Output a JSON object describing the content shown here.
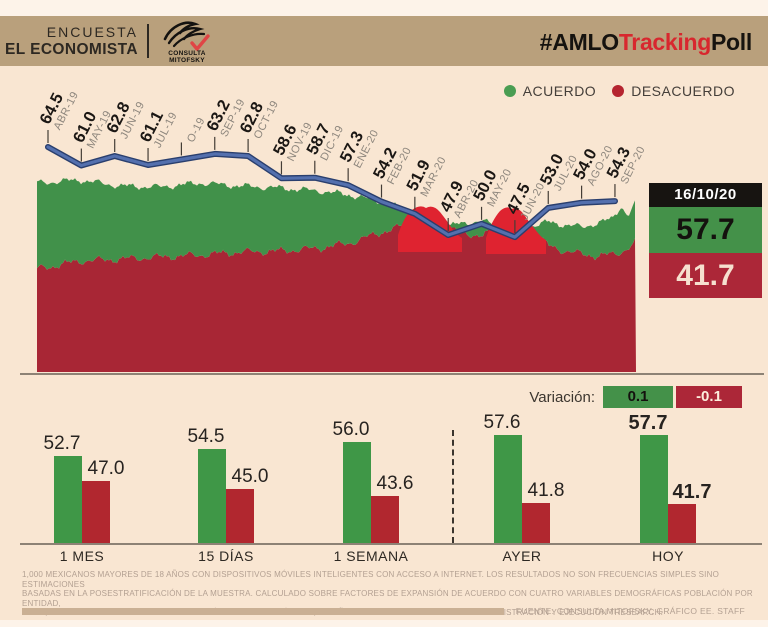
{
  "header": {
    "survey_label": "ENCUESTA",
    "brand": "EL ECONOMISTA",
    "logo_caption": "CONSULTA MITOFSKY",
    "hashtag": {
      "part1": "#AMLO",
      "part2": "Tracking",
      "part3": "Poll"
    }
  },
  "legend": {
    "acuerdo_label": "ACUERDO",
    "desacuerdo_label": "DESACUERDO"
  },
  "colors": {
    "acuerdo_green": "#41914a",
    "desacuerdo_red": "#a82635",
    "bright_red": "#df2330",
    "bar_green": "#3f9747",
    "bar_red": "#b1272f",
    "line_blue": "#5470ae",
    "line_blue_dark": "#2a3f6e",
    "accent_red": "#d8272e",
    "tan": "#b9a07c"
  },
  "snapshot": {
    "date": "16/10/20",
    "acuerdo_value": "57.7",
    "desacuerdo_value": "41.7"
  },
  "variation": {
    "label": "Variación:",
    "acuerdo_value": "0.1",
    "desacuerdo_value": "-0.1"
  },
  "chart_data": [
    {
      "type": "area",
      "title": "#AMLOTrackingPoll — ACUERDO vs DESACUERDO diario con promedio mensual",
      "legend": [
        "ACUERDO",
        "DESACUERDO"
      ],
      "legend_position": "top-right",
      "x_labels": [
        "ABR-19",
        "MAY-19",
        "JUN-19",
        "JUL-19",
        "O-19",
        "SEP-19",
        "OCT-19",
        "NOV-19",
        "DIC-19",
        "ENE-20",
        "FEB-20",
        "MAR-20",
        "ABR-20",
        "MAY-20",
        "JUN-20",
        "JUL-20",
        "AGO-20",
        "SEP-20"
      ],
      "value_labels": [
        "64.5",
        "61.0",
        "62.8",
        "61.1",
        "",
        "63.2",
        "62.8",
        "58.6",
        "58.7",
        "57.3",
        "54.2",
        "51.9",
        "47.9",
        "50.0",
        "47.5",
        "53.0",
        "54.0",
        "54.3"
      ],
      "line_series": {
        "name": "ACUERDO promedio mensual",
        "values": [
          64.5,
          61.0,
          62.8,
          61.1,
          null,
          63.2,
          62.8,
          58.6,
          58.7,
          57.3,
          54.2,
          51.9,
          47.9,
          50.0,
          47.5,
          53.0,
          54.0,
          54.3
        ]
      },
      "latest": {
        "date": "16/10/20",
        "acuerdo": 57.7,
        "desacuerdo": 41.7
      }
    },
    {
      "type": "bar",
      "categories": [
        "1 MES",
        "15 DÍAS",
        "1 SEMANA",
        "AYER",
        "HOY"
      ],
      "series": [
        {
          "name": "ACUERDO",
          "color": "#3f9747",
          "values": [
            52.7,
            54.5,
            56.0,
            57.6,
            57.7
          ]
        },
        {
          "name": "DESACUERDO",
          "color": "#b1272f",
          "values": [
            47.0,
            45.0,
            43.6,
            41.8,
            41.7
          ]
        }
      ],
      "variation": {
        "acuerdo": 0.1,
        "desacuerdo": -0.1
      }
    }
  ],
  "footnote": {
    "line1": "1,000 MEXICANOS MAYORES DE 18 AÑOS CON DISPOSITIVOS MÓVILES INTELIGENTES CON ACCESO A INTERNET. LOS RESULTADOS NO SON FRECUENCIAS SIMPLES SINO ESTIMACIONES",
    "line2": "BASADAS EN LA POSESTRATIFICACIÓN DE LA MUESTRA. CALCULADO SOBRE FACTORES DE EXPANSIÓN DE ACUERDO CON CUATRO VARIABLES DEMOGRÁFICAS POBLACIÓN POR ENTIDAD,",
    "line3": "SEXO, EDAD Y ESCOLARIDAD OBTENIDAD DELÚLTIMO CENSO PÚBLICO, DISEÑO MUESTRAL ROY CAMPOS SC I ADMINISTRACIÓN Y EJECUCIÓN TRESEARCH."
  },
  "source": "FUENTE: CONSULTA MITOFSKY. GRÁFICO EE. STAFF"
}
